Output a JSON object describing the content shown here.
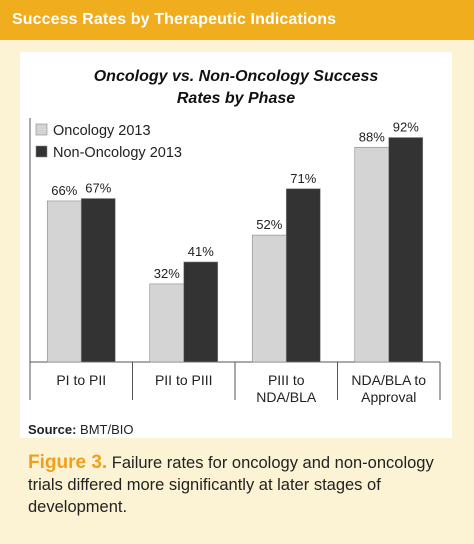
{
  "header": {
    "title": "Success Rates by Therapeutic Indications"
  },
  "source": {
    "label": "Source:",
    "value": " BMT/BIO"
  },
  "caption": {
    "figure_label": "Figure 3.",
    "text": " Failure rates for oncology and non-oncology trials differed more significantly at later stages of development."
  },
  "colors": {
    "header": "#f0ad1e",
    "oncology": "#d4d4d4",
    "non_oncology": "#333333",
    "background": "#fbf3d3"
  },
  "chart_data": {
    "type": "bar",
    "title_line1": "Oncology vs. Non-Oncology Success",
    "title_line2": "Rates by Phase",
    "categories": [
      [
        "PI to PII"
      ],
      [
        "PII to PIII"
      ],
      [
        "PIII to",
        "NDA/BLA"
      ],
      [
        "NDA/BLA to",
        "Approval"
      ]
    ],
    "series": [
      {
        "name": "Oncology 2013",
        "values": [
          66,
          32,
          52,
          88
        ],
        "labels": [
          "66%",
          "32%",
          "52%",
          "88%"
        ],
        "color": "#d4d4d4"
      },
      {
        "name": "Non-Oncology 2013",
        "values": [
          67,
          41,
          71,
          92
        ],
        "labels": [
          "67%",
          "41%",
          "71%",
          "92%"
        ],
        "color": "#333333"
      }
    ],
    "ylim": [
      0,
      100
    ],
    "legend_position": "top-left",
    "grid": false
  }
}
